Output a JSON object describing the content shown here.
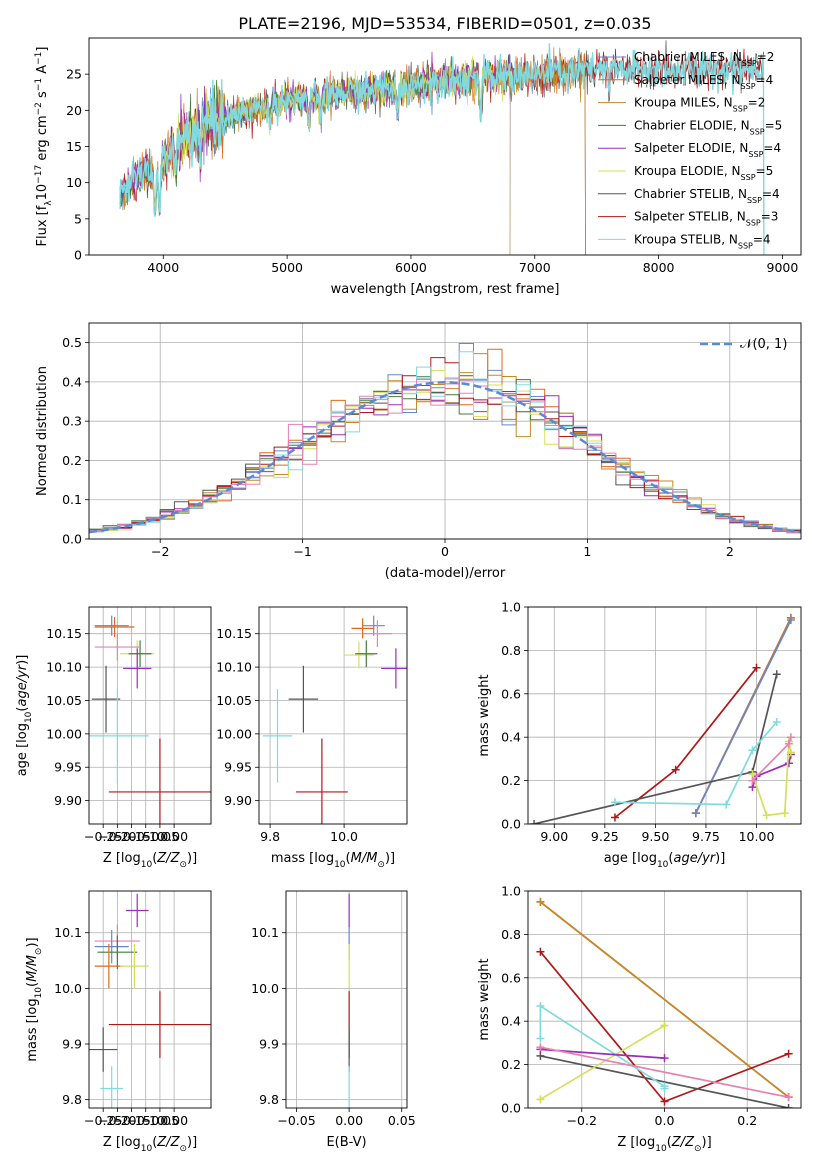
{
  "figure": {
    "title": "PLATE=2196, MJD=53534, FIBERID=0501, z=0.035"
  },
  "colors": {
    "Chabrier MILES": "#6688cc",
    "Salpeter MILES": "#e06a1a",
    "Kroupa MILES": "#c28a2a",
    "Chabrier ELODIE": "#3f7f3f",
    "Salpeter ELODIE": "#9b2fb5",
    "Kroupa ELODIE": "#d4e05a",
    "Chabrier STELIB": "#555555",
    "Salpeter STELIB": "#b01818",
    "Kroupa STELIB": "#7fdbe0",
    "Kroupa STELIB pink": "#e880b0",
    "normal": "#5a8ad6"
  },
  "chart_data": [
    {
      "id": "spectrum",
      "type": "line",
      "xlabel": "wavelength [Angstrom, rest frame]",
      "ylabel": "Flux [f_λ 10^-17 erg cm^-2 s^-1 A^-1]",
      "xlim": [
        3400,
        9150
      ],
      "ylim": [
        0,
        30
      ],
      "xticks": [
        4000,
        5000,
        6000,
        7000,
        8000,
        9000
      ],
      "yticks": [
        0,
        5,
        10,
        15,
        20,
        25
      ],
      "grid": false,
      "legend_position": "right",
      "series": [
        {
          "name": "Chabrier MILES, N_SSP=2",
          "range": [
            3650,
            7410
          ]
        },
        {
          "name": "Salpeter MILES, N_SSP=4",
          "range": [
            3650,
            7410
          ]
        },
        {
          "name": "Kroupa MILES, N_SSP=2",
          "range": [
            3650,
            7410
          ]
        },
        {
          "name": "Chabrier ELODIE, N_SSP=5",
          "range": [
            3650,
            6800
          ]
        },
        {
          "name": "Salpeter ELODIE, N_SSP=4",
          "range": [
            3650,
            6800
          ]
        },
        {
          "name": "Kroupa ELODIE, N_SSP=5",
          "range": [
            3900,
            6800
          ]
        },
        {
          "name": "Chabrier STELIB, N_SSP=4",
          "range": [
            3650,
            8850
          ]
        },
        {
          "name": "Salpeter STELIB, N_SSP=3",
          "range": [
            3650,
            8850
          ]
        },
        {
          "name": "Kroupa STELIB, N_SSP=4",
          "range": [
            3650,
            8850
          ]
        }
      ],
      "continuum": [
        [
          3650,
          8
        ],
        [
          3800,
          11
        ],
        [
          3950,
          12
        ],
        [
          4100,
          15
        ],
        [
          4300,
          18
        ],
        [
          4500,
          19
        ],
        [
          4700,
          20
        ],
        [
          5000,
          21.5
        ],
        [
          5500,
          22.5
        ],
        [
          6000,
          23.5
        ],
        [
          6500,
          24.5
        ],
        [
          7000,
          25
        ],
        [
          7500,
          25.5
        ],
        [
          8000,
          25.5
        ],
        [
          8500,
          25.5
        ],
        [
          8850,
          26
        ]
      ],
      "features": [
        [
          3933,
          0.5
        ],
        [
          3968,
          0.5
        ],
        [
          4100,
          0.8
        ],
        [
          4300,
          0.8
        ],
        [
          4861,
          0.88
        ],
        [
          5175,
          0.8
        ],
        [
          5270,
          0.88
        ],
        [
          5890,
          0.85
        ],
        [
          6563,
          0.8
        ],
        [
          7600,
          0.92
        ]
      ]
    },
    {
      "id": "residuals",
      "type": "line",
      "xlabel": "(data-model)/error",
      "ylabel": "Normed distribution",
      "xlim": [
        -2.5,
        2.5
      ],
      "ylim": [
        0,
        0.55
      ],
      "xticks": [
        -2,
        -1,
        0,
        1,
        2
      ],
      "yticks": [
        0.0,
        0.1,
        0.2,
        0.3,
        0.4,
        0.5
      ],
      "grid": true,
      "legend": [
        {
          "name": "𝒩(0, 1)"
        }
      ],
      "legend_position": "top-right",
      "bin_width": 0.1
    },
    {
      "id": "age_vs_Z",
      "type": "scatter",
      "xlabel": "Z [log10(Z/Z_sun)]",
      "ylabel": "age [log10(age/yr)]",
      "xlim": [
        -0.3,
        0.13
      ],
      "ylim": [
        9.865,
        10.19
      ],
      "xticks": [
        -0.25,
        -0.2,
        -0.15,
        -0.1,
        -0.05,
        0.0
      ],
      "yticks": [
        9.9,
        9.95,
        10.0,
        10.05,
        10.1,
        10.15
      ],
      "grid": true,
      "points": [
        {
          "c": "Chabrier MILES",
          "x": -0.22,
          "xe": 0.06,
          "y": 10.162,
          "ye": 0.015
        },
        {
          "c": "Salpeter MILES",
          "x": -0.21,
          "xe": 0.07,
          "y": 10.16,
          "ye": 0.015
        },
        {
          "c": "Kroupa ELODIE",
          "x": -0.13,
          "xe": 0.06,
          "y": 10.12,
          "ye": 0.02
        },
        {
          "c": "Chabrier ELODIE",
          "x": -0.12,
          "xe": 0.04,
          "y": 10.12,
          "ye": 0.02
        },
        {
          "c": "Kroupa STELIB pink",
          "x": -0.2,
          "xe": 0.08,
          "y": 10.13,
          "ye": 0.02
        },
        {
          "c": "Salpeter ELODIE",
          "x": -0.13,
          "xe": 0.05,
          "y": 10.098,
          "ye": 0.03
        },
        {
          "c": "Chabrier STELIB",
          "x": -0.24,
          "xe": 0.05,
          "y": 10.052,
          "ye": 0.05
        },
        {
          "c": "Kroupa STELIB",
          "x": -0.2,
          "xe": 0.11,
          "y": 9.997,
          "ye": 0.07
        },
        {
          "c": "Salpeter STELIB",
          "x": -0.05,
          "xe": 0.18,
          "y": 9.913,
          "ye": 0.08
        }
      ]
    },
    {
      "id": "age_vs_mass",
      "type": "scatter",
      "xlabel": "mass [log10(M/M_sun)]",
      "ylabel": "",
      "xlim": [
        9.77,
        10.17
      ],
      "ylim": [
        9.865,
        10.19
      ],
      "xticks": [
        9.8,
        10.0
      ],
      "yticks": [
        9.9,
        9.95,
        10.0,
        10.05,
        10.1,
        10.15
      ],
      "grid": true,
      "points": [
        {
          "c": "Chabrier MILES",
          "x": 10.08,
          "xe": 0.03,
          "y": 10.162,
          "ye": 0.015
        },
        {
          "c": "Salpeter MILES",
          "x": 10.05,
          "xe": 0.03,
          "y": 10.158,
          "ye": 0.015
        },
        {
          "c": "Kroupa STELIB pink",
          "x": 10.09,
          "xe": 0.04,
          "y": 10.15,
          "ye": 0.02
        },
        {
          "c": "Kroupa ELODIE",
          "x": 10.04,
          "xe": 0.04,
          "y": 10.118,
          "ye": 0.02
        },
        {
          "c": "Chabrier ELODIE",
          "x": 10.06,
          "xe": 0.03,
          "y": 10.12,
          "ye": 0.02
        },
        {
          "c": "Salpeter ELODIE",
          "x": 10.14,
          "xe": 0.04,
          "y": 10.098,
          "ye": 0.03
        },
        {
          "c": "Chabrier STELIB",
          "x": 9.89,
          "xe": 0.04,
          "y": 10.052,
          "ye": 0.05
        },
        {
          "c": "Kroupa STELIB",
          "x": 9.82,
          "xe": 0.04,
          "y": 9.997,
          "ye": 0.07
        },
        {
          "c": "Salpeter STELIB",
          "x": 9.94,
          "xe": 0.07,
          "y": 9.913,
          "ye": 0.08
        }
      ]
    },
    {
      "id": "massweight_vs_age",
      "type": "line",
      "xlabel": "age [log10(age/yr)]",
      "ylabel": "mass weight",
      "xlim": [
        8.87,
        10.22
      ],
      "ylim": [
        0,
        1.0
      ],
      "xticks": [
        9.0,
        9.25,
        9.5,
        9.75,
        10.0
      ],
      "yticks": [
        0.0,
        0.2,
        0.4,
        0.6,
        0.8,
        1.0
      ],
      "grid": true,
      "series": [
        {
          "c": "Kroupa MILES",
          "x": [
            9.7,
            10.17
          ],
          "y": [
            0.05,
            0.95
          ]
        },
        {
          "c": "Salpeter MILES",
          "x": [
            9.7,
            10.17
          ],
          "y": [
            0.05,
            0.95
          ]
        },
        {
          "c": "Chabrier MILES",
          "x": [
            9.7,
            10.17
          ],
          "y": [
            0.05,
            0.94
          ]
        },
        {
          "c": "Salpeter STELIB",
          "x": [
            9.3,
            9.6,
            10.0
          ],
          "y": [
            0.03,
            0.25,
            0.72
          ]
        },
        {
          "c": "Chabrier STELIB",
          "x": [
            8.9,
            9.98,
            10.1
          ],
          "y": [
            0.0,
            0.24,
            0.69
          ]
        },
        {
          "c": "Kroupa STELIB",
          "x": [
            9.3,
            9.85,
            9.98,
            10.1
          ],
          "y": [
            0.1,
            0.09,
            0.34,
            0.47
          ]
        },
        {
          "c": "Salpeter ELODIE",
          "x": [
            9.98,
            10.0,
            10.16,
            10.17
          ],
          "y": [
            0.17,
            0.22,
            0.28,
            0.32
          ]
        },
        {
          "c": "Kroupa ELODIE",
          "x": [
            9.98,
            10.05,
            10.14,
            10.16,
            10.17
          ],
          "y": [
            0.23,
            0.04,
            0.05,
            0.38,
            0.33
          ]
        },
        {
          "c": "Kroupa STELIB pink",
          "x": [
            9.98,
            10.16,
            10.17
          ],
          "y": [
            0.2,
            0.37,
            0.4
          ]
        }
      ]
    },
    {
      "id": "mass_vs_Z",
      "type": "scatter",
      "xlabel": "Z [log10(Z/Z_sun)]",
      "ylabel": "mass [log10(M/M_sun)]",
      "xlim": [
        -0.3,
        0.13
      ],
      "ylim": [
        9.785,
        10.175
      ],
      "xticks": [
        -0.25,
        -0.2,
        -0.15,
        -0.1,
        -0.05,
        0.0
      ],
      "yticks": [
        9.8,
        9.9,
        10.0,
        10.1
      ],
      "grid": true,
      "points": [
        {
          "c": "Salpeter ELODIE",
          "x": -0.13,
          "xe": 0.04,
          "y": 10.14,
          "ye": 0.03
        },
        {
          "c": "Kroupa STELIB pink",
          "x": -0.2,
          "xe": 0.08,
          "y": 10.085,
          "ye": 0.03
        },
        {
          "c": "Chabrier MILES",
          "x": -0.22,
          "xe": 0.06,
          "y": 10.075,
          "ye": 0.03
        },
        {
          "c": "Chabrier ELODIE",
          "x": -0.2,
          "xe": 0.07,
          "y": 10.065,
          "ye": 0.03
        },
        {
          "c": "Salpeter MILES",
          "x": -0.23,
          "xe": 0.05,
          "y": 10.04,
          "ye": 0.04
        },
        {
          "c": "Kroupa ELODIE",
          "x": -0.14,
          "xe": 0.05,
          "y": 10.04,
          "ye": 0.04
        },
        {
          "c": "Salpeter STELIB",
          "x": -0.05,
          "xe": 0.18,
          "y": 9.935,
          "ye": 0.06
        },
        {
          "c": "Chabrier STELIB",
          "x": -0.25,
          "xe": 0.05,
          "y": 9.89,
          "ye": 0.04
        },
        {
          "c": "Kroupa STELIB",
          "x": -0.22,
          "xe": 0.04,
          "y": 9.82,
          "ye": 0.04
        }
      ]
    },
    {
      "id": "mass_vs_ebv",
      "type": "scatter",
      "xlabel": "E(B-V)",
      "ylabel": "",
      "xlim": [
        -0.06,
        0.055
      ],
      "ylim": [
        9.785,
        10.175
      ],
      "xticks": [
        -0.05,
        0.0,
        0.05
      ],
      "yticks": [
        9.8,
        9.9,
        10.0,
        10.1
      ],
      "grid": true,
      "points": [
        {
          "c": "Salpeter ELODIE",
          "x": 0.0,
          "xe": 0.0,
          "y": 10.14,
          "ye": 0.03
        },
        {
          "c": "Chabrier MILES",
          "x": 0.0,
          "xe": 0.0,
          "y": 10.08,
          "ye": 0.03
        },
        {
          "c": "Kroupa ELODIE",
          "x": 0.0,
          "xe": 0.0,
          "y": 10.04,
          "ye": 0.04
        },
        {
          "c": "Salpeter STELIB",
          "x": 0.0,
          "xe": 0.0,
          "y": 9.935,
          "ye": 0.06
        },
        {
          "c": "Chabrier STELIB",
          "x": 0.0,
          "xe": 0.0,
          "y": 9.89,
          "ye": 0.04
        },
        {
          "c": "Kroupa STELIB",
          "x": 0.0,
          "xe": 0.0,
          "y": 9.82,
          "ye": 0.04
        }
      ]
    },
    {
      "id": "massweight_vs_Z",
      "type": "line",
      "xlabel": "Z [log10(Z/Z_sun)]",
      "ylabel": "mass weight",
      "xlim": [
        -0.33,
        0.33
      ],
      "ylim": [
        0,
        1.0
      ],
      "xticks": [
        -0.2,
        0.0,
        0.2
      ],
      "yticks": [
        0.0,
        0.2,
        0.4,
        0.6,
        0.8,
        1.0
      ],
      "grid": true,
      "series": [
        {
          "c": "Salpeter MILES",
          "x": [
            -0.3,
            0.3
          ],
          "y": [
            0.95,
            0.05
          ]
        },
        {
          "c": "Kroupa MILES",
          "x": [
            -0.3,
            0.3
          ],
          "y": [
            0.95,
            0.05
          ]
        },
        {
          "c": "Salpeter STELIB",
          "x": [
            -0.3,
            0.0,
            0.3
          ],
          "y": [
            0.72,
            0.03,
            0.25
          ]
        },
        {
          "c": "Chabrier STELIB",
          "x": [
            -0.3,
            0.3
          ],
          "y": [
            0.24,
            0.0
          ]
        },
        {
          "c": "Kroupa STELIB",
          "x": [
            -0.3,
            -0.3,
            0.0,
            0.0
          ],
          "y": [
            0.32,
            0.47,
            0.1,
            0.09
          ]
        },
        {
          "c": "Kroupa ELODIE",
          "x": [
            -0.3,
            0.0,
            0.0,
            -0.3
          ],
          "y": [
            0.04,
            0.38,
            0.38,
            0.04
          ]
        },
        {
          "c": "Salpeter ELODIE",
          "x": [
            -0.3,
            0.0
          ],
          "y": [
            0.27,
            0.23
          ]
        },
        {
          "c": "Kroupa STELIB pink",
          "x": [
            -0.3,
            0.3
          ],
          "y": [
            0.28,
            0.05
          ]
        }
      ]
    }
  ]
}
